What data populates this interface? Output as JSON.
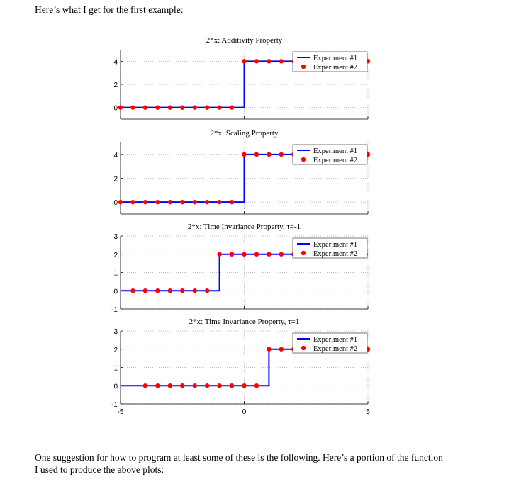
{
  "intro_text": "Here’s what I get for the first example:",
  "outro_lines": [
    "One suggestion for how to program at least some of these is the following. Here’s a portion of the function",
    "I used to produce the above plots:"
  ],
  "colors": {
    "line": "#0000ff",
    "marker": "#ff0000",
    "grid": "#b0b0b0"
  },
  "chart_data": [
    {
      "type": "line",
      "title": "2*x: Additivity Property",
      "xlim": [
        -5,
        5
      ],
      "ylim": [
        -1,
        5
      ],
      "yticks": [
        0,
        2,
        4
      ],
      "xticks": [
        -5,
        0,
        5
      ],
      "show_xtick_labels": false,
      "grid": true,
      "legend": {
        "position": "top-right",
        "entries": [
          "Experiment #1",
          "Experiment #2"
        ]
      },
      "series": [
        {
          "name": "Experiment #1",
          "style": "line",
          "x": [
            -5,
            0,
            0,
            5
          ],
          "y": [
            0,
            0,
            4,
            4
          ]
        },
        {
          "name": "Experiment #2",
          "style": "markers",
          "x": [
            -5,
            -4.5,
            -4,
            -3.5,
            -3,
            -2.5,
            -2,
            -1.5,
            -1,
            -0.5,
            0,
            0.5,
            1,
            1.5,
            2,
            2.5,
            3,
            3.5,
            4,
            4.5,
            5
          ],
          "y": [
            0,
            0,
            0,
            0,
            0,
            0,
            0,
            0,
            0,
            0,
            4,
            4,
            4,
            4,
            4,
            4,
            4,
            4,
            4,
            4,
            4
          ]
        }
      ]
    },
    {
      "type": "line",
      "title": "2*x: Scaling Property",
      "xlim": [
        -5,
        5
      ],
      "ylim": [
        -1,
        5
      ],
      "yticks": [
        0,
        2,
        4
      ],
      "xticks": [
        -5,
        0,
        5
      ],
      "show_xtick_labels": false,
      "grid": true,
      "legend": {
        "position": "top-right",
        "entries": [
          "Experiment #1",
          "Experiment #2"
        ]
      },
      "series": [
        {
          "name": "Experiment #1",
          "style": "line",
          "x": [
            -5,
            0,
            0,
            5
          ],
          "y": [
            0,
            0,
            4,
            4
          ]
        },
        {
          "name": "Experiment #2",
          "style": "markers",
          "x": [
            -5,
            -4.5,
            -4,
            -3.5,
            -3,
            -2.5,
            -2,
            -1.5,
            -1,
            -0.5,
            0,
            0.5,
            1,
            1.5,
            2,
            2.5,
            3,
            3.5,
            4,
            4.5,
            5
          ],
          "y": [
            0,
            0,
            0,
            0,
            0,
            0,
            0,
            0,
            0,
            0,
            4,
            4,
            4,
            4,
            4,
            4,
            4,
            4,
            4,
            4,
            4
          ]
        }
      ]
    },
    {
      "type": "line",
      "title": "2*x: Time Invariance Property, τ=-1",
      "xlim": [
        -5,
        5
      ],
      "ylim": [
        -1,
        3
      ],
      "yticks": [
        -1,
        0,
        1,
        2,
        3
      ],
      "xticks": [
        -5,
        0,
        5
      ],
      "show_xtick_labels": false,
      "grid": true,
      "legend": {
        "position": "top-right",
        "entries": [
          "Experiment #1",
          "Experiment #2"
        ]
      },
      "series": [
        {
          "name": "Experiment #1",
          "style": "line",
          "x": [
            -5,
            -1,
            -1,
            5
          ],
          "y": [
            0,
            0,
            2,
            2
          ]
        },
        {
          "name": "Experiment #2",
          "style": "markers",
          "x": [
            -4.5,
            -4,
            -3.5,
            -3,
            -2.5,
            -2,
            -1.5,
            -1,
            -0.5,
            0,
            0.5,
            1,
            1.5,
            2,
            2.5,
            3,
            3.5,
            4,
            4.5
          ],
          "y": [
            0,
            0,
            0,
            0,
            0,
            0,
            0,
            2,
            2,
            2,
            2,
            2,
            2,
            2,
            2,
            2,
            2,
            2,
            2
          ]
        }
      ]
    },
    {
      "type": "line",
      "title": "2*x: Time Invariance Property, τ=1",
      "xlim": [
        -5,
        5
      ],
      "ylim": [
        -1,
        3
      ],
      "yticks": [
        -1,
        0,
        1,
        2,
        3
      ],
      "xticks": [
        -5,
        0,
        5
      ],
      "show_xtick_labels": true,
      "grid": true,
      "legend": {
        "position": "top-right",
        "entries": [
          "Experiment #1",
          "Experiment #2"
        ]
      },
      "series": [
        {
          "name": "Experiment #1",
          "style": "line",
          "x": [
            -5,
            1,
            1,
            5
          ],
          "y": [
            0,
            0,
            2,
            2
          ]
        },
        {
          "name": "Experiment #2",
          "style": "markers",
          "x": [
            -4,
            -3.5,
            -3,
            -2.5,
            -2,
            -1.5,
            -1,
            -0.5,
            0,
            0.5,
            1,
            1.5,
            2,
            2.5,
            3,
            3.5,
            4,
            4.5,
            5
          ],
          "y": [
            0,
            0,
            0,
            0,
            0,
            0,
            0,
            0,
            0,
            0,
            2,
            2,
            2,
            2,
            2,
            2,
            2,
            2,
            2
          ]
        }
      ]
    }
  ]
}
